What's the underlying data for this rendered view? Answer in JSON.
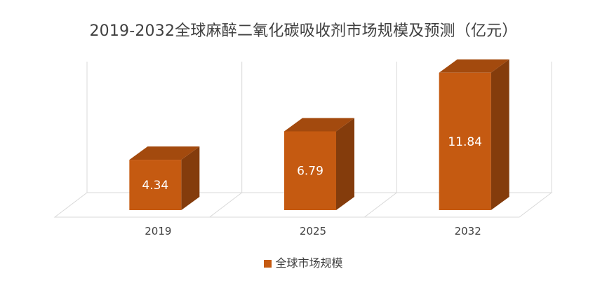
{
  "chart_data": {
    "type": "bar",
    "title": "2019-2032全球麻醉二氧化碳吸收剂市场规模及预测（亿元）",
    "categories": [
      "2019",
      "2025",
      "2032"
    ],
    "series": [
      {
        "name": "全球市场规模",
        "values": [
          4.34,
          6.79,
          11.84
        ]
      }
    ],
    "data_labels": [
      "4.34",
      "6.79",
      "11.84"
    ],
    "ylim": [
      0,
      14
    ],
    "grid": true,
    "legend_position": "bottom",
    "style": "3d-column",
    "colors": {
      "front": "#C55A11",
      "top": "#A34A0E",
      "side": "#843C0C",
      "grid": "#D9D9D9",
      "label": "#FFFFFF",
      "text": "#404040"
    }
  }
}
